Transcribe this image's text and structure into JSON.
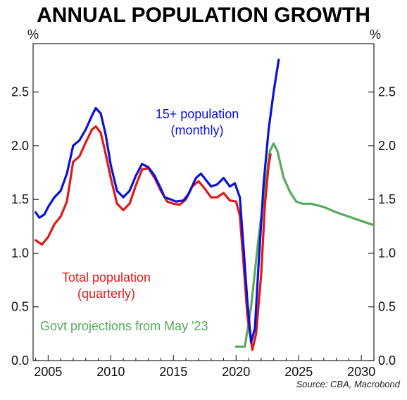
{
  "chart_data": {
    "type": "line",
    "title": "ANNUAL POPULATION GROWTH",
    "ylabel_left": "%",
    "ylabel_right": "%",
    "xlim": [
      2003.8,
      2031.0
    ],
    "ylim": [
      0.0,
      2.95
    ],
    "x_ticks": [
      2005,
      2010,
      2015,
      2020,
      2025,
      2030
    ],
    "y_ticks": [
      "0.0",
      "0.5",
      "1.0",
      "1.5",
      "2.0",
      "2.5"
    ],
    "grid": false,
    "annotations": [
      {
        "text": "15+ population",
        "color": "#0a12d8"
      },
      {
        "text": "(monthly)",
        "color": "#0a12d8"
      },
      {
        "text": "Total population",
        "color": "#e01818"
      },
      {
        "text": "(quarterly)",
        "color": "#e01818"
      },
      {
        "text": "Govt projections from May '23",
        "color": "#5aaa5e"
      }
    ],
    "source": "Source: CBA, Macrobond",
    "series": [
      {
        "name": "15+ population (monthly)",
        "color": "#0a12d8",
        "points": [
          [
            2004.0,
            1.38
          ],
          [
            2004.3,
            1.33
          ],
          [
            2004.7,
            1.36
          ],
          [
            2005.0,
            1.43
          ],
          [
            2005.5,
            1.52
          ],
          [
            2006.0,
            1.58
          ],
          [
            2006.5,
            1.74
          ],
          [
            2007.0,
            2.0
          ],
          [
            2007.5,
            2.05
          ],
          [
            2008.0,
            2.15
          ],
          [
            2008.5,
            2.28
          ],
          [
            2008.8,
            2.35
          ],
          [
            2009.2,
            2.3
          ],
          [
            2009.6,
            2.1
          ],
          [
            2010.0,
            1.82
          ],
          [
            2010.5,
            1.58
          ],
          [
            2011.0,
            1.52
          ],
          [
            2011.5,
            1.58
          ],
          [
            2012.0,
            1.72
          ],
          [
            2012.5,
            1.83
          ],
          [
            2013.0,
            1.8
          ],
          [
            2013.5,
            1.72
          ],
          [
            2014.0,
            1.6
          ],
          [
            2014.3,
            1.52
          ],
          [
            2014.8,
            1.5
          ],
          [
            2015.2,
            1.48
          ],
          [
            2015.8,
            1.49
          ],
          [
            2016.2,
            1.55
          ],
          [
            2016.8,
            1.7
          ],
          [
            2017.2,
            1.74
          ],
          [
            2017.6,
            1.68
          ],
          [
            2018.0,
            1.62
          ],
          [
            2018.5,
            1.64
          ],
          [
            2019.0,
            1.7
          ],
          [
            2019.5,
            1.62
          ],
          [
            2019.9,
            1.65
          ],
          [
            2020.3,
            1.52
          ],
          [
            2020.6,
            1.05
          ],
          [
            2020.9,
            0.55
          ],
          [
            2021.2,
            0.17
          ],
          [
            2021.5,
            0.3
          ],
          [
            2021.8,
            0.9
          ],
          [
            2022.2,
            1.65
          ],
          [
            2022.6,
            2.15
          ],
          [
            2023.0,
            2.5
          ],
          [
            2023.4,
            2.8
          ]
        ]
      },
      {
        "name": "Total population (quarterly)",
        "color": "#e01818",
        "points": [
          [
            2004.0,
            1.12
          ],
          [
            2004.5,
            1.08
          ],
          [
            2005.0,
            1.15
          ],
          [
            2005.5,
            1.27
          ],
          [
            2006.0,
            1.34
          ],
          [
            2006.5,
            1.48
          ],
          [
            2007.0,
            1.85
          ],
          [
            2007.5,
            1.9
          ],
          [
            2008.0,
            2.03
          ],
          [
            2008.5,
            2.15
          ],
          [
            2008.8,
            2.18
          ],
          [
            2009.2,
            2.12
          ],
          [
            2009.6,
            1.92
          ],
          [
            2010.0,
            1.7
          ],
          [
            2010.5,
            1.46
          ],
          [
            2011.0,
            1.4
          ],
          [
            2011.5,
            1.46
          ],
          [
            2012.0,
            1.63
          ],
          [
            2012.5,
            1.78
          ],
          [
            2013.0,
            1.79
          ],
          [
            2013.5,
            1.7
          ],
          [
            2014.0,
            1.58
          ],
          [
            2014.5,
            1.48
          ],
          [
            2015.0,
            1.46
          ],
          [
            2015.5,
            1.45
          ],
          [
            2016.0,
            1.5
          ],
          [
            2016.5,
            1.62
          ],
          [
            2017.0,
            1.67
          ],
          [
            2017.5,
            1.6
          ],
          [
            2018.0,
            1.52
          ],
          [
            2018.5,
            1.52
          ],
          [
            2019.0,
            1.56
          ],
          [
            2019.5,
            1.49
          ],
          [
            2020.0,
            1.48
          ],
          [
            2020.3,
            1.35
          ],
          [
            2020.6,
            0.9
          ],
          [
            2020.9,
            0.42
          ],
          [
            2021.3,
            0.1
          ],
          [
            2021.6,
            0.25
          ],
          [
            2022.0,
            0.8
          ],
          [
            2022.3,
            1.45
          ],
          [
            2022.6,
            1.82
          ],
          [
            2022.75,
            1.92
          ]
        ]
      },
      {
        "name": "Govt projections from May '23",
        "color": "#5aaa5e",
        "points": [
          [
            2020.0,
            0.13
          ],
          [
            2020.7,
            0.13
          ],
          [
            2021.2,
            0.5
          ],
          [
            2021.8,
            1.15
          ],
          [
            2022.3,
            1.6
          ],
          [
            2022.7,
            1.95
          ],
          [
            2023.0,
            2.02
          ],
          [
            2023.3,
            1.95
          ],
          [
            2023.8,
            1.7
          ],
          [
            2024.3,
            1.57
          ],
          [
            2024.8,
            1.48
          ],
          [
            2025.3,
            1.46
          ],
          [
            2026.0,
            1.46
          ],
          [
            2027.0,
            1.43
          ],
          [
            2028.0,
            1.38
          ],
          [
            2029.0,
            1.34
          ],
          [
            2030.0,
            1.3
          ],
          [
            2031.0,
            1.26
          ]
        ]
      }
    ]
  }
}
